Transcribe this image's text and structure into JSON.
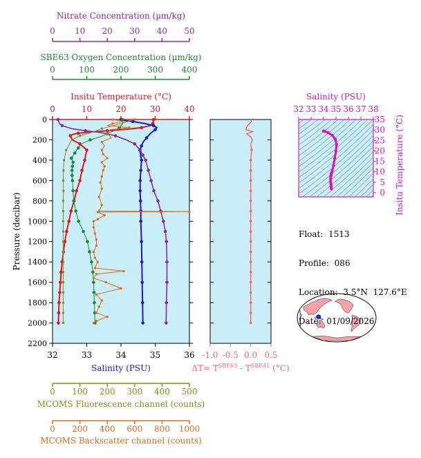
{
  "info": {
    "float_label": "Float:",
    "float": "1513",
    "profile_label": "Profile:",
    "profile": "086",
    "location_label": "Location:",
    "location": "3.5°N  127.6°E",
    "date_label": "Date:",
    "date": "01/09/2026"
  },
  "colors": {
    "nitrate": "#8b2a9c",
    "oxygen": "#1b8a2e",
    "temperature": "#e4141b",
    "salinity": "#1a1acc",
    "fluorescence": "#8a8a1e",
    "backscatter": "#e06a1a",
    "delta": "#f06a6a",
    "ts": "#e010c0",
    "panel_bg": "#c9eef7"
  },
  "chart_data": [
    {
      "type": "line",
      "panel": "main-profile",
      "ylabel": "Pressure (decibar)",
      "ylim": [
        2200,
        0
      ],
      "yticks": [
        0,
        200,
        400,
        600,
        800,
        1000,
        1200,
        1400,
        1600,
        1800,
        2000,
        2200
      ],
      "axes": {
        "nitrate": {
          "label": "Nitrate Concentration (µm/kg)",
          "range": [
            0,
            50
          ],
          "ticks": [
            0,
            10,
            20,
            30,
            40,
            50
          ]
        },
        "oxygen": {
          "label": "SBE63 Oxygen Concentration (µm/kg)",
          "range": [
            0,
            400
          ],
          "ticks": [
            0,
            100,
            200,
            300,
            400
          ]
        },
        "temperature": {
          "label": "Insitu Temperature (°C)",
          "range": [
            0,
            40
          ],
          "ticks": [
            0,
            10,
            20,
            30,
            40
          ]
        },
        "salinity": {
          "label": "Salinity (PSU)",
          "range": [
            32,
            36
          ],
          "ticks": [
            32,
            33,
            34,
            35,
            36
          ]
        },
        "fluorescence": {
          "label": "MCOMS Fluorescence channel (counts)",
          "range": [
            0,
            500
          ],
          "ticks": [
            0,
            100,
            200,
            300,
            400,
            500
          ]
        },
        "backscatter": {
          "label": "MCOMS Backscatter channel (counts)",
          "range": [
            0,
            1000
          ],
          "ticks": [
            0,
            200,
            400,
            600,
            800,
            1000
          ]
        }
      },
      "series": [
        {
          "axis": "temperature",
          "points": [
            [
              29.5,
              0
            ],
            [
              29.4,
              20
            ],
            [
              29.3,
              40
            ],
            [
              28.5,
              60
            ],
            [
              26.0,
              80
            ],
            [
              22.0,
              95
            ],
            [
              16.0,
              110
            ],
            [
              10.5,
              125
            ],
            [
              7.5,
              135
            ],
            [
              6.0,
              145
            ],
            [
              5.2,
              160
            ],
            [
              5.8,
              200
            ],
            [
              8.0,
              240
            ],
            [
              10.0,
              300
            ],
            [
              9.4,
              400
            ],
            [
              8.6,
              500
            ],
            [
              8.0,
              600
            ],
            [
              7.0,
              700
            ],
            [
              6.3,
              800
            ],
            [
              5.4,
              900
            ],
            [
              4.8,
              1000
            ],
            [
              4.1,
              1100
            ],
            [
              3.6,
              1200
            ],
            [
              3.2,
              1300
            ],
            [
              2.8,
              1400
            ],
            [
              2.5,
              1500
            ],
            [
              2.3,
              1600
            ],
            [
              2.1,
              1700
            ],
            [
              1.9,
              1800
            ],
            [
              1.8,
              1900
            ],
            [
              1.7,
              2000
            ]
          ]
        },
        {
          "axis": "salinity",
          "points": [
            [
              34.0,
              0
            ],
            [
              34.1,
              10
            ],
            [
              34.35,
              20
            ],
            [
              34.7,
              40
            ],
            [
              34.95,
              60
            ],
            [
              35.05,
              80
            ],
            [
              35.0,
              100
            ],
            [
              34.85,
              140
            ],
            [
              34.75,
              180
            ],
            [
              34.65,
              220
            ],
            [
              34.6,
              260
            ],
            [
              34.55,
              300
            ],
            [
              34.6,
              400
            ],
            [
              34.58,
              500
            ],
            [
              34.56,
              600
            ],
            [
              34.56,
              700
            ],
            [
              34.57,
              800
            ],
            [
              34.58,
              900
            ],
            [
              34.58,
              1000
            ],
            [
              34.6,
              1200
            ],
            [
              34.61,
              1400
            ],
            [
              34.62,
              1600
            ],
            [
              34.63,
              1800
            ],
            [
              34.64,
              2000
            ]
          ]
        },
        {
          "axis": "nitrate",
          "points": [
            [
              2.0,
              0
            ],
            [
              2.5,
              40
            ],
            [
              3.5,
              60
            ],
            [
              7.0,
              90
            ],
            [
              12.0,
              110
            ],
            [
              18.0,
              130
            ],
            [
              23.0,
              160
            ],
            [
              27.0,
              200
            ],
            [
              30.0,
              240
            ],
            [
              32.0,
              300
            ],
            [
              33.0,
              350
            ],
            [
              34.0,
              400
            ],
            [
              35.0,
              500
            ],
            [
              36.0,
              600
            ],
            [
              37.0,
              700
            ],
            [
              38.5,
              800
            ],
            [
              39.5,
              900
            ],
            [
              40.5,
              1000
            ],
            [
              41.2,
              1100
            ],
            [
              41.6,
              1200
            ],
            [
              41.8,
              1400
            ],
            [
              41.8,
              1600
            ],
            [
              41.6,
              1800
            ],
            [
              41.5,
              2000
            ]
          ]
        },
        {
          "axis": "oxygen",
          "points": [
            [
              205,
              0
            ],
            [
              205,
              40
            ],
            [
              195,
              80
            ],
            [
              180,
              110
            ],
            [
              160,
              140
            ],
            [
              140,
              170
            ],
            [
              110,
              200
            ],
            [
              85,
              240
            ],
            [
              75,
              280
            ],
            [
              65,
              330
            ],
            [
              55,
              380
            ],
            [
              60,
              420
            ],
            [
              58,
              460
            ],
            [
              57,
              500
            ],
            [
              57,
              550
            ],
            [
              58,
              600
            ],
            [
              60,
              700
            ],
            [
              62,
              800
            ],
            [
              68,
              900
            ],
            [
              76,
              1000
            ],
            [
              90,
              1100
            ],
            [
              102,
              1200
            ],
            [
              108,
              1300
            ],
            [
              114,
              1400
            ],
            [
              118,
              1500
            ],
            [
              120,
              1600
            ],
            [
              121,
              1700
            ],
            [
              122,
              1800
            ],
            [
              123,
              1900
            ],
            [
              124,
              2000
            ]
          ]
        },
        {
          "axis": "fluorescence",
          "points": [
            [
              300,
              0
            ],
            [
              250,
              40
            ],
            [
              180,
              90
            ],
            [
              140,
              130
            ],
            [
              100,
              160
            ],
            [
              70,
              200
            ],
            [
              50,
              300
            ],
            [
              42,
              400
            ],
            [
              40,
              500
            ],
            [
              39,
              600
            ],
            [
              40,
              700
            ],
            [
              39,
              800
            ],
            [
              39,
              900
            ],
            [
              39,
              1000
            ],
            [
              39,
              1100
            ],
            [
              39,
              1200
            ],
            [
              39,
              1300
            ],
            [
              39,
              1400
            ],
            [
              39,
              1500
            ],
            [
              39,
              1600
            ],
            [
              39,
              1700
            ],
            [
              39,
              1800
            ],
            [
              39,
              1900
            ],
            [
              39,
              2000
            ]
          ]
        },
        {
          "axis": "backscatter",
          "points": [
            [
              440,
              0
            ],
            [
              520,
              20
            ],
            [
              440,
              40
            ],
            [
              400,
              60
            ],
            [
              560,
              80
            ],
            [
              420,
              100
            ],
            [
              400,
              140
            ],
            [
              430,
              180
            ],
            [
              360,
              220
            ],
            [
              380,
              260
            ],
            [
              360,
              300
            ],
            [
              370,
              340
            ],
            [
              400,
              380
            ],
            [
              360,
              420
            ],
            [
              380,
              460
            ],
            [
              370,
              500
            ],
            [
              360,
              560
            ],
            [
              350,
              620
            ],
            [
              360,
              680
            ],
            [
              340,
              760
            ],
            [
              360,
              840
            ],
            [
              340,
              900
            ],
            [
              1000,
              905
            ],
            [
              330,
              910
            ],
            [
              380,
              940
            ],
            [
              330,
              980
            ],
            [
              300,
              1000
            ],
            [
              300,
              1060
            ],
            [
              310,
              1120
            ],
            [
              320,
              1180
            ],
            [
              320,
              1240
            ],
            [
              300,
              1300
            ],
            [
              310,
              1360
            ],
            [
              330,
              1400
            ],
            [
              310,
              1460
            ],
            [
              520,
              1490
            ],
            [
              320,
              1520
            ],
            [
              300,
              1560
            ],
            [
              390,
              1600
            ],
            [
              500,
              1660
            ],
            [
              320,
              1720
            ],
            [
              360,
              1780
            ],
            [
              340,
              1840
            ],
            [
              320,
              1900
            ],
            [
              400,
              1940
            ],
            [
              320,
              1980
            ],
            [
              300,
              2000
            ]
          ]
        }
      ]
    },
    {
      "type": "line",
      "panel": "delta-temperature",
      "xlabel_sbe63_sup": "SBE63",
      "xlabel_sbe41_sup": "SBE41",
      "xlabel_prefix": "ΔT= T",
      "xlabel_mid": " - T",
      "xlabel_suffix": " (°C)",
      "xlim": [
        -1.0,
        0.5
      ],
      "xticks": [
        -1.0,
        -0.5,
        0.0,
        0.5
      ],
      "ylim": [
        2200,
        0
      ],
      "points": [
        [
          0.0,
          0
        ],
        [
          0.02,
          20
        ],
        [
          -0.08,
          60
        ],
        [
          -0.12,
          100
        ],
        [
          0.05,
          120
        ],
        [
          -0.1,
          140
        ],
        [
          0.0,
          170
        ],
        [
          0.04,
          200
        ],
        [
          0.0,
          240
        ],
        [
          0.02,
          300
        ],
        [
          0.0,
          400
        ],
        [
          0.0,
          500
        ],
        [
          0.0,
          600
        ],
        [
          0.0,
          700
        ],
        [
          0.0,
          800
        ],
        [
          0.0,
          900
        ],
        [
          0.0,
          1000
        ],
        [
          0.0,
          1100
        ],
        [
          0.0,
          1200
        ],
        [
          0.0,
          1300
        ],
        [
          0.0,
          1400
        ],
        [
          0.0,
          1500
        ],
        [
          0.0,
          1600
        ],
        [
          0.0,
          1700
        ],
        [
          0.0,
          1800
        ],
        [
          0.0,
          1900
        ],
        [
          0.0,
          2000
        ]
      ]
    },
    {
      "type": "scatter",
      "panel": "ts-diagram",
      "xlabel": "Salinity (PSU)",
      "ylabel": "Insitu Temperature (°C)",
      "xlim": [
        32,
        38
      ],
      "ylim": [
        -2,
        35
      ],
      "xticks": [
        32,
        33,
        34,
        35,
        36,
        37,
        38
      ],
      "yticks": [
        0,
        5,
        10,
        15,
        20,
        25,
        30,
        35
      ],
      "points": [
        [
          34.0,
          29.5
        ],
        [
          34.1,
          29.3
        ],
        [
          34.35,
          28.8
        ],
        [
          34.7,
          27.5
        ],
        [
          34.95,
          25.5
        ],
        [
          35.05,
          23.0
        ],
        [
          35.0,
          20.0
        ],
        [
          34.9,
          16.5
        ],
        [
          34.8,
          13.0
        ],
        [
          34.7,
          10.5
        ],
        [
          34.65,
          9.6
        ],
        [
          34.62,
          9.0
        ],
        [
          34.6,
          8.2
        ],
        [
          34.58,
          7.5
        ],
        [
          34.57,
          6.6
        ],
        [
          34.57,
          5.6
        ],
        [
          34.58,
          4.8
        ],
        [
          34.6,
          4.0
        ],
        [
          34.61,
          3.2
        ],
        [
          34.62,
          2.6
        ],
        [
          34.63,
          2.2
        ],
        [
          34.64,
          1.8
        ]
      ]
    },
    {
      "type": "map",
      "panel": "location-map",
      "marker": {
        "lat": 3.5,
        "lon": 127.6
      }
    }
  ]
}
